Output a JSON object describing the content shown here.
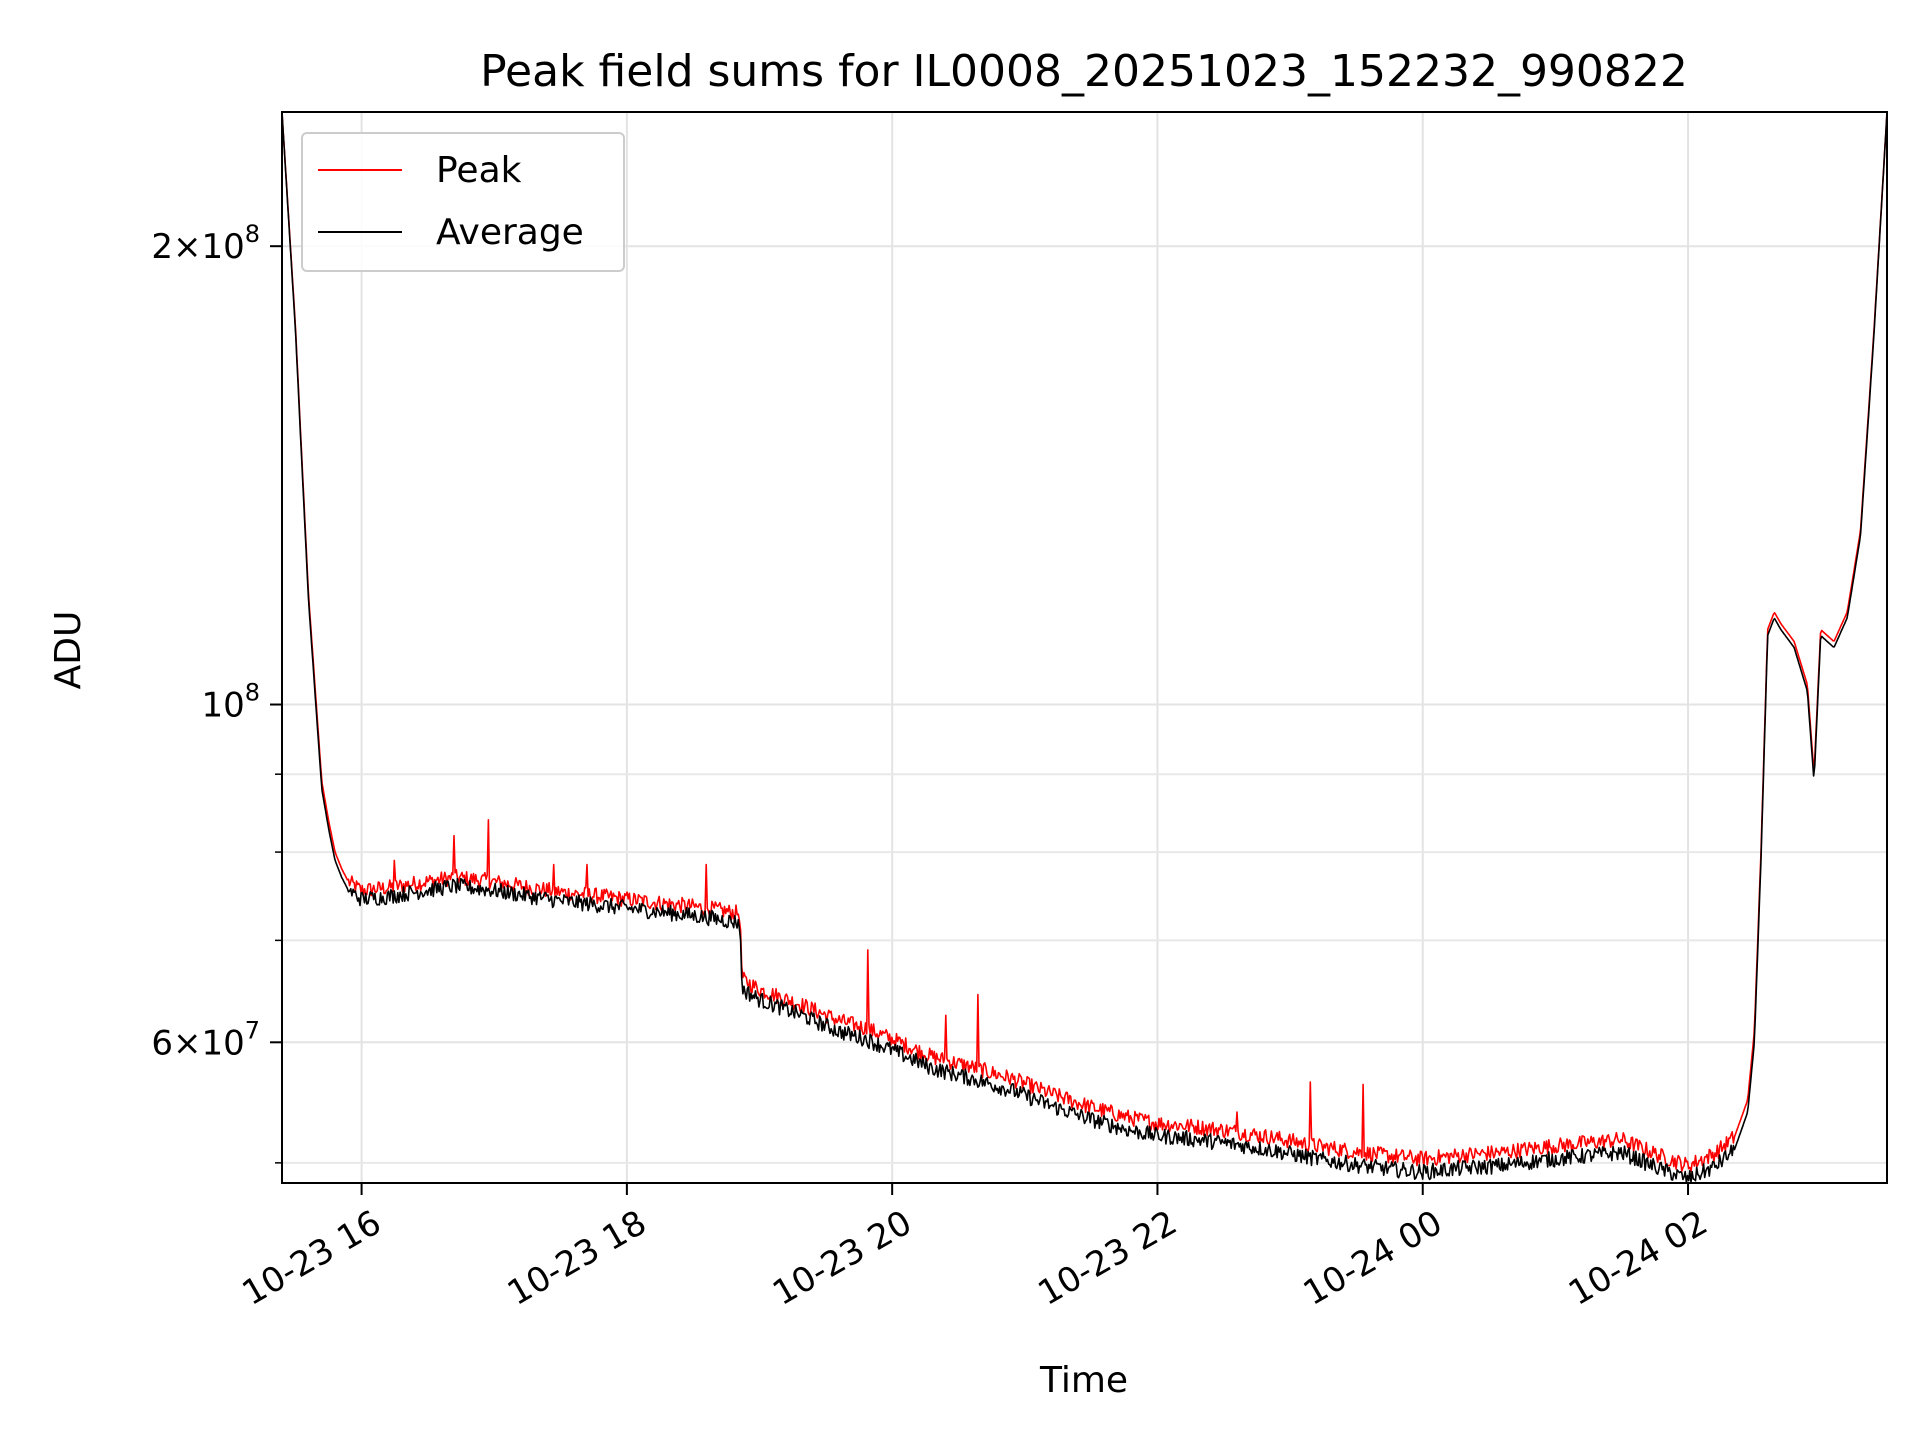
{
  "chart_data": {
    "type": "line",
    "title": "Peak field sums for IL0008_20251023_152232_990822",
    "xlabel": "Time",
    "ylabel": "ADU",
    "yscale": "log",
    "ylim": [
      48500000,
      245000000
    ],
    "xlim_hours": [
      15.4,
      27.5
    ],
    "grid": true,
    "legend_position": "top-left",
    "x_ticks": [
      {
        "hour": 16,
        "label": "10-23 16"
      },
      {
        "hour": 18,
        "label": "10-23 18"
      },
      {
        "hour": 20,
        "label": "10-23 20"
      },
      {
        "hour": 22,
        "label": "10-23 22"
      },
      {
        "hour": 24,
        "label": "10-24 00"
      },
      {
        "hour": 26,
        "label": "10-24 02"
      }
    ],
    "y_major_ticks": [
      {
        "value": 60000000,
        "mantissa": "6",
        "exp": "7"
      },
      {
        "value": 100000000,
        "mantissa": "",
        "exp": "8"
      },
      {
        "value": 200000000,
        "mantissa": "2",
        "exp": "8"
      }
    ],
    "y_minor_ticks": [
      50000000,
      70000000,
      80000000,
      90000000
    ],
    "series": [
      {
        "name": "Peak",
        "color": "#ff0000",
        "x": [
          15.4,
          15.5,
          15.6,
          15.7,
          15.75,
          15.8,
          15.85,
          15.9,
          16.0,
          16.2,
          16.4,
          16.7,
          16.95,
          17.2,
          17.5,
          17.7,
          18.0,
          18.3,
          18.6,
          18.85,
          18.87,
          19.0,
          19.3,
          19.6,
          19.8,
          20.0,
          20.3,
          20.6,
          20.9,
          21.2,
          21.5,
          21.8,
          22.0,
          22.3,
          22.6,
          22.9,
          23.2,
          23.6,
          24.0,
          24.3,
          24.6,
          24.9,
          25.2,
          25.5,
          25.8,
          26.0,
          26.2,
          26.35,
          26.45,
          26.5,
          26.55,
          26.6,
          26.65,
          26.7,
          26.8,
          26.9,
          26.95,
          27.0,
          27.1,
          27.2,
          27.3,
          27.4,
          27.5
        ],
        "y": [
          245000000,
          178000000,
          118000000,
          89000000,
          84000000,
          80000000,
          78000000,
          76500000,
          75500000,
          75800000,
          76300000,
          77000000,
          76600000,
          76000000,
          75300000,
          75000000,
          74500000,
          74000000,
          73500000,
          72900000,
          66000000,
          65000000,
          63600000,
          62000000,
          61300000,
          60300000,
          58700000,
          57800000,
          56800000,
          55500000,
          54400000,
          53500000,
          53100000,
          52800000,
          52400000,
          51900000,
          51300000,
          50700000,
          50300000,
          50600000,
          50800000,
          51200000,
          51500000,
          51800000,
          50500000,
          49800000,
          50700000,
          52000000,
          55000000,
          61000000,
          80000000,
          112000000,
          115000000,
          113000000,
          110000000,
          103000000,
          90000000,
          112000000,
          110000000,
          115000000,
          130000000,
          175000000,
          245000000
        ],
        "spikes": [
          {
            "x": 16.25,
            "y": 79000000
          },
          {
            "x": 16.7,
            "y": 82000000
          },
          {
            "x": 16.96,
            "y": 84000000
          },
          {
            "x": 17.45,
            "y": 78500000
          },
          {
            "x": 17.7,
            "y": 78500000
          },
          {
            "x": 18.6,
            "y": 78500000
          },
          {
            "x": 19.82,
            "y": 69000000
          },
          {
            "x": 20.4,
            "y": 62500000
          },
          {
            "x": 20.65,
            "y": 64500000
          },
          {
            "x": 22.6,
            "y": 54000000
          },
          {
            "x": 23.15,
            "y": 56500000
          },
          {
            "x": 23.55,
            "y": 56300000
          }
        ]
      },
      {
        "name": "Average",
        "color": "#000000",
        "x": [
          15.4,
          15.5,
          15.6,
          15.7,
          15.75,
          15.8,
          15.85,
          15.9,
          16.0,
          16.2,
          16.4,
          16.7,
          16.95,
          17.2,
          17.5,
          17.7,
          18.0,
          18.3,
          18.6,
          18.85,
          18.87,
          19.0,
          19.3,
          19.6,
          19.8,
          20.0,
          20.3,
          20.6,
          20.9,
          21.2,
          21.5,
          21.8,
          22.0,
          22.3,
          22.6,
          22.9,
          23.2,
          23.6,
          24.0,
          24.3,
          24.6,
          24.9,
          25.2,
          25.5,
          25.8,
          26.0,
          26.2,
          26.35,
          26.45,
          26.5,
          26.55,
          26.6,
          26.65,
          26.7,
          26.8,
          26.9,
          26.95,
          27.0,
          27.1,
          27.2,
          27.3,
          27.4,
          27.5
        ],
        "y": [
          245000000,
          177000000,
          117000000,
          88000000,
          83000000,
          79000000,
          77000000,
          75500000,
          74500000,
          74800000,
          75300000,
          76000000,
          75600000,
          75000000,
          74300000,
          74000000,
          73500000,
          73000000,
          72500000,
          71900000,
          65000000,
          64000000,
          62600000,
          61000000,
          60300000,
          59300000,
          57700000,
          56800000,
          55800000,
          54500000,
          53400000,
          52500000,
          52100000,
          51800000,
          51400000,
          50900000,
          50300000,
          49700000,
          49300000,
          49600000,
          49800000,
          50200000,
          50500000,
          50800000,
          49500000,
          48800000,
          49700000,
          51000000,
          54000000,
          60000000,
          79000000,
          111000000,
          114000000,
          112000000,
          109000000,
          102000000,
          89000000,
          111000000,
          109000000,
          114000000,
          129000000,
          174000000,
          245000000
        ]
      }
    ]
  }
}
